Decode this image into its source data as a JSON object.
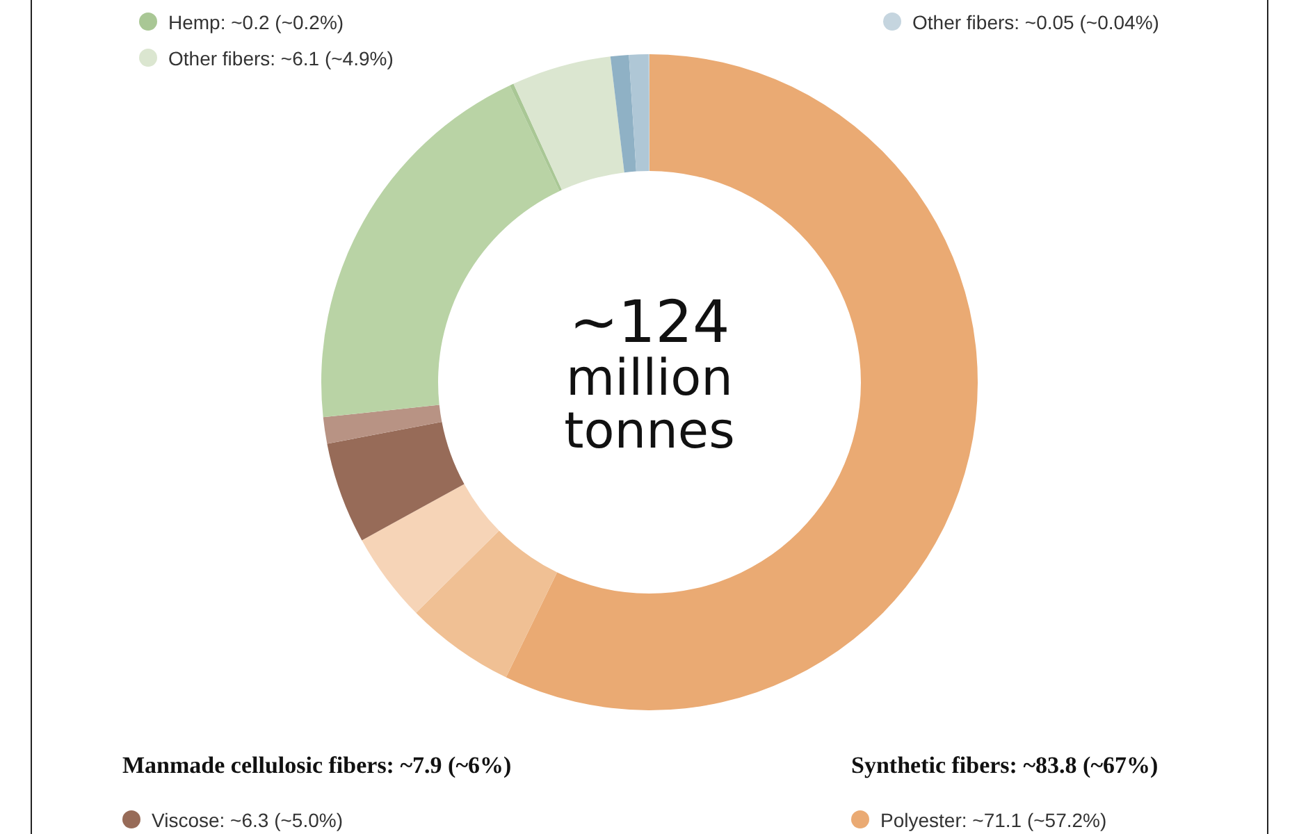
{
  "chart_data": {
    "type": "donut",
    "categories": [
      "Polyester",
      null,
      null,
      "Viscose",
      null,
      null,
      "Hemp",
      "Other fibers",
      null,
      null,
      "Other fibers"
    ],
    "values": [
      57.2,
      5.4,
      4.4,
      5.0,
      1.3,
      19.7,
      0.2,
      4.9,
      0.9,
      0.96,
      0.04
    ],
    "value_labels": [
      "~71.1 (~57.2%)",
      null,
      null,
      "~6.3 (~5.0%)",
      null,
      null,
      "~0.2 (~0.2%)",
      "~6.1 (~4.9%)",
      null,
      null,
      "~0.05 (~0.04%)"
    ],
    "colors": [
      "#eaaa73",
      "#f0c094",
      "#f6d4b7",
      "#976b58",
      "#b89384",
      "#b9d3a5",
      "#a9c795",
      "#dbe6d0",
      "#8fb1c5",
      "#afc7d6",
      "#c5d5df"
    ],
    "legend": "bottom",
    "annotations": [
      "~124 million tonnes",
      "Manmade cellulosic fibers: ~7.9 (~6%)",
      "Synthetic fibers: ~83.8 (~67%)"
    ]
  }
}
